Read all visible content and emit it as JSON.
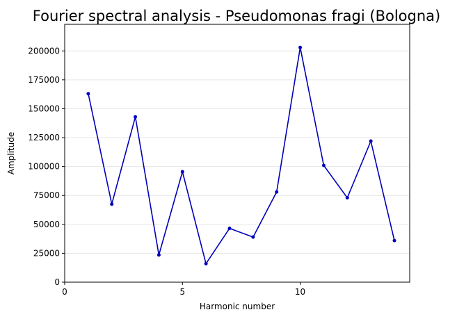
{
  "chart_data": {
    "type": "line",
    "title": "Fourier spectral analysis - Pseudomonas fragi (Bologna)",
    "xlabel": "Harmonic number",
    "ylabel": "Amplitude",
    "xlim": [
      0,
      14.65
    ],
    "ylim": [
      0,
      223000
    ],
    "xticks": [
      0,
      5,
      10
    ],
    "yticks": [
      0,
      25000,
      50000,
      75000,
      100000,
      125000,
      150000,
      175000,
      200000
    ],
    "grid": "horizontal",
    "line_color": "#0000bb",
    "series": [
      {
        "x": [
          1,
          2,
          3,
          4,
          5,
          6,
          7,
          8,
          9,
          10,
          11,
          12,
          13,
          14
        ],
        "values": [
          163000,
          67500,
          143000,
          23500,
          95500,
          16000,
          46500,
          39000,
          78000,
          203000,
          101000,
          73000,
          122000,
          36000
        ]
      }
    ]
  }
}
